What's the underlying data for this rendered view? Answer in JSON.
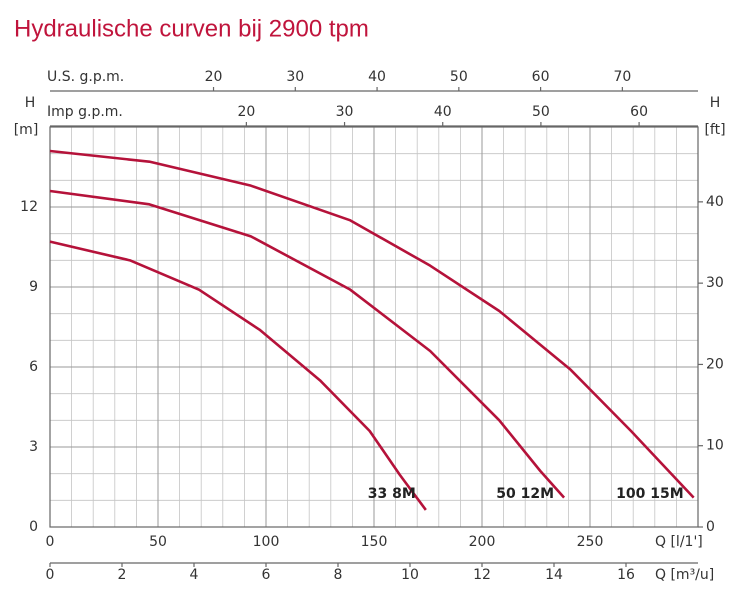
{
  "chart_data": {
    "type": "line",
    "title": "Hydraulische curven bij 2900 tpm",
    "xlabel": "Q [l/1']",
    "xlim": [
      0,
      300
    ],
    "xticks": [
      0,
      50,
      100,
      150,
      200,
      250
    ],
    "ylabel": "H",
    "yunit": "[m]",
    "ylim": [
      0,
      15
    ],
    "yticks": [
      0,
      3,
      6,
      9,
      12
    ],
    "y2label": "H",
    "y2unit": "[ft]",
    "y2lim": [
      0,
      49.21
    ],
    "y2ticks": [
      0,
      10,
      20,
      30,
      40
    ],
    "extra_x_axes": [
      {
        "label": "Q [m³/u]",
        "position": "bottom",
        "lim": [
          0,
          18
        ],
        "ticks": [
          0,
          2,
          4,
          6,
          8,
          10,
          12,
          14,
          16
        ]
      },
      {
        "label": "U.S. g.p.m.",
        "position": "top",
        "lim": [
          0,
          79.25
        ],
        "ticks": [
          20,
          30,
          40,
          50,
          60,
          70
        ]
      },
      {
        "label": "Imp g.p.m.",
        "position": "top",
        "lim": [
          0,
          66
        ],
        "ticks": [
          20,
          30,
          40,
          50,
          60
        ]
      }
    ],
    "grid": true,
    "minor_grid": true,
    "series": [
      {
        "name": "33 8M",
        "color": "#b5123a",
        "x": [
          0,
          37,
          69,
          97,
          125,
          148,
          162,
          174
        ],
        "values": [
          10.7,
          10.0,
          8.9,
          7.4,
          5.5,
          3.6,
          1.95,
          0.64
        ]
      },
      {
        "name": "50 12M",
        "color": "#b5123a",
        "x": [
          0,
          46,
          93,
          139,
          176,
          208,
          227,
          238
        ],
        "values": [
          12.6,
          12.1,
          10.9,
          8.9,
          6.6,
          4.0,
          2.1,
          1.1
        ]
      },
      {
        "name": "100 15M",
        "color": "#b5123a",
        "x": [
          0,
          46,
          93,
          139,
          176,
          208,
          241,
          269,
          298
        ],
        "values": [
          14.1,
          13.7,
          12.8,
          11.5,
          9.8,
          8.1,
          5.9,
          3.6,
          1.1
        ]
      }
    ]
  }
}
